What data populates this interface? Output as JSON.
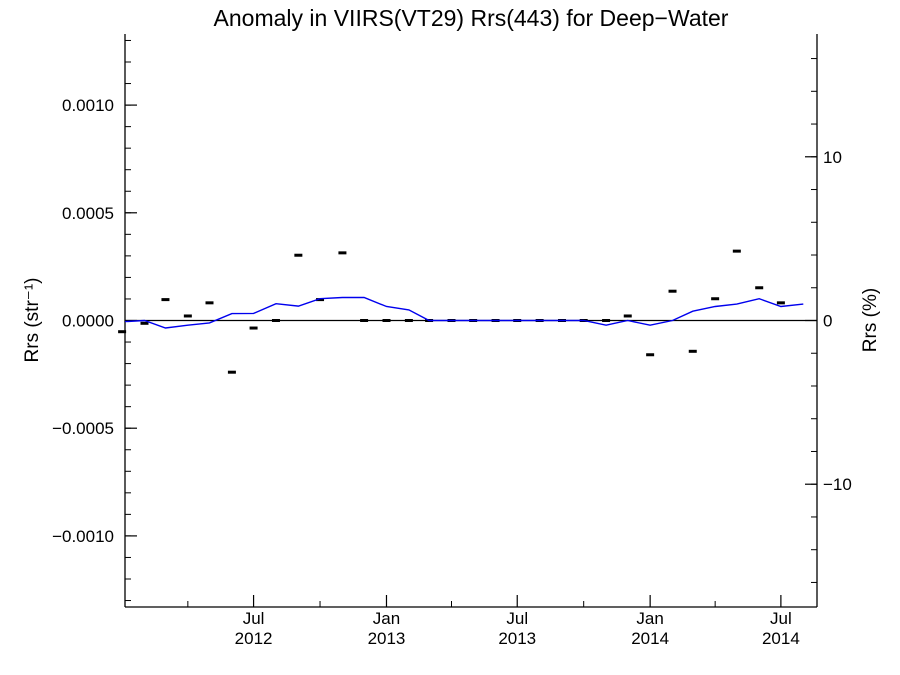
{
  "chart_data": {
    "type": "line",
    "title": "Anomaly in VIIRS(VT29) Rrs(443) for Deep−Water",
    "ylabel_left": "Rrs (str⁻¹)",
    "ylabel_right": "Rrs (%)",
    "x_range": [
      "2012-01-05",
      "2014-08-20"
    ],
    "ylim_left": [
      -0.00133,
      0.00133
    ],
    "ylim_right": [
      -17.5,
      17.5
    ],
    "zero_line": true,
    "x_ticks": [
      {
        "date": "2012-07-01",
        "label_month": "Jul",
        "label_year": "2012"
      },
      {
        "date": "2013-01-01",
        "label_month": "Jan",
        "label_year": "2013"
      },
      {
        "date": "2013-07-01",
        "label_month": "Jul",
        "label_year": "2013"
      },
      {
        "date": "2014-01-01",
        "label_month": "Jan",
        "label_year": "2014"
      },
      {
        "date": "2014-07-01",
        "label_month": "Jul",
        "label_year": "2014"
      }
    ],
    "y_ticks_left": [
      {
        "value": 0.001,
        "label": "0.0010"
      },
      {
        "value": 0.0005,
        "label": "0.0005"
      },
      {
        "value": 0.0,
        "label": "0.0000"
      },
      {
        "value": -0.0005,
        "label": "−0.0005"
      },
      {
        "value": -0.001,
        "label": "−0.0010"
      }
    ],
    "y_ticks_right": [
      {
        "value": 10,
        "label": "10"
      },
      {
        "value": 0,
        "label": "0"
      },
      {
        "value": -10,
        "label": "−10"
      }
    ],
    "series": [
      {
        "style": "dash-markers",
        "axis": "left",
        "color": "#000000",
        "points": [
          [
            "2012-01-01",
            -5.2e-05
          ],
          [
            "2012-02-01",
            -1.3e-05
          ],
          [
            "2012-03-01",
            9.7e-05
          ],
          [
            "2012-04-01",
            2.1e-05
          ],
          [
            "2012-05-01",
            8.2e-05
          ],
          [
            "2012-06-01",
            -0.00024
          ],
          [
            "2012-07-01",
            -3.5e-05
          ],
          [
            "2012-08-01",
            0.0
          ],
          [
            "2012-09-01",
            0.000303
          ],
          [
            "2012-10-01",
            9.7e-05
          ],
          [
            "2012-11-01",
            0.000314
          ],
          [
            "2012-12-01",
            0.0
          ],
          [
            "2013-01-01",
            0.0
          ],
          [
            "2013-02-01",
            0.0
          ],
          [
            "2013-03-01",
            0.0
          ],
          [
            "2013-04-01",
            0.0
          ],
          [
            "2013-05-01",
            0.0
          ],
          [
            "2013-06-01",
            0.0
          ],
          [
            "2013-07-01",
            0.0
          ],
          [
            "2013-08-01",
            0.0
          ],
          [
            "2013-09-01",
            0.0
          ],
          [
            "2013-10-01",
            0.0
          ],
          [
            "2013-11-01",
            0.0
          ],
          [
            "2013-12-01",
            2.1e-05
          ],
          [
            "2014-01-01",
            -0.000159
          ],
          [
            "2014-02-01",
            0.000136
          ],
          [
            "2014-03-01",
            -0.000143
          ],
          [
            "2014-04-01",
            0.000101
          ],
          [
            "2014-05-01",
            0.000322
          ],
          [
            "2014-06-01",
            0.000152
          ],
          [
            "2014-07-01",
            8.2e-05
          ]
        ]
      },
      {
        "style": "line",
        "axis": "left",
        "color": "#0000ee",
        "points": [
          [
            "2012-01-05",
            -5e-06
          ],
          [
            "2012-02-01",
            0.0
          ],
          [
            "2012-03-01",
            -3.5e-05
          ],
          [
            "2012-04-01",
            -2.2e-05
          ],
          [
            "2012-05-01",
            -1.1e-05
          ],
          [
            "2012-06-01",
            3.2e-05
          ],
          [
            "2012-07-01",
            3.3e-05
          ],
          [
            "2012-08-01",
            7.8e-05
          ],
          [
            "2012-09-01",
            6.7e-05
          ],
          [
            "2012-10-01",
            0.000101
          ],
          [
            "2012-11-01",
            0.000107
          ],
          [
            "2012-12-01",
            0.000107
          ],
          [
            "2013-01-01",
            6.5e-05
          ],
          [
            "2013-02-01",
            4.9e-05
          ],
          [
            "2013-03-01",
            0.0
          ],
          [
            "2013-04-01",
            0.0
          ],
          [
            "2013-05-01",
            0.0
          ],
          [
            "2013-06-01",
            0.0
          ],
          [
            "2013-07-01",
            0.0
          ],
          [
            "2013-08-01",
            0.0
          ],
          [
            "2013-09-01",
            0.0
          ],
          [
            "2013-10-01",
            0.0
          ],
          [
            "2013-11-01",
            -2.2e-05
          ],
          [
            "2013-12-01",
            0.0
          ],
          [
            "2014-01-01",
            -2.2e-05
          ],
          [
            "2014-02-01",
            0.0
          ],
          [
            "2014-03-01",
            4.3e-05
          ],
          [
            "2014-04-01",
            6.5e-05
          ],
          [
            "2014-05-01",
            7.6e-05
          ],
          [
            "2014-06-01",
            0.000101
          ],
          [
            "2014-07-01",
            6.5e-05
          ],
          [
            "2014-08-01",
            7.6e-05
          ]
        ]
      }
    ]
  }
}
